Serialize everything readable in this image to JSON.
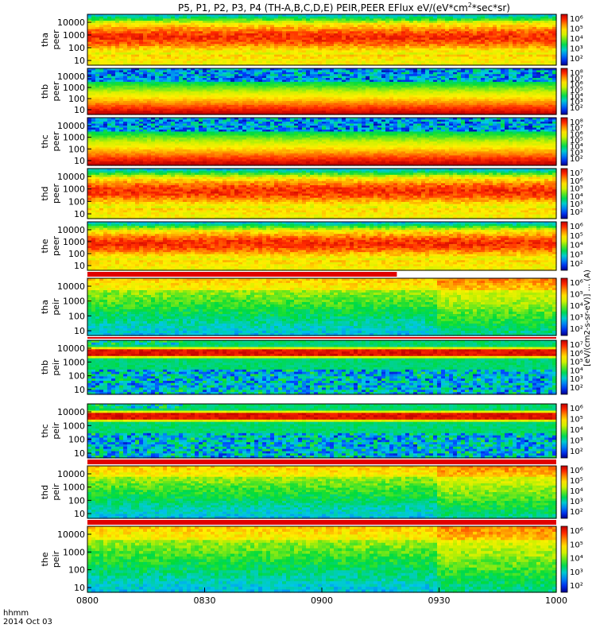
{
  "chart_data": {
    "type": "heatmap",
    "title": "P5, P1, P2, P3, P4 (TH-A,B,C,D,E) PEIR,PEER EFlux eV/(eV*cm",
    "title_sup": "2",
    "title_tail": "*sec*sr)",
    "colorbar_title": "[eV/(cm2-s-sr-eV)] ... (A)",
    "colors": {
      "red": "#e00000",
      "orange": "#ff8000",
      "yellow": "#ffff00",
      "green": "#00e000",
      "cyan": "#00e0e0",
      "blue": "#0050ff",
      "navy": "#000080",
      "black": "#000000"
    },
    "x": {
      "ticks": [
        "0800",
        "0830",
        "0900",
        "0930",
        "1000"
      ],
      "range_minutes": [
        0,
        120
      ],
      "label_line1": "hhmm",
      "label_line2": "2014 Oct 03"
    },
    "y_ticks": [
      "10000",
      "1000",
      "100",
      "10"
    ],
    "panels": [
      {
        "probe": "tha",
        "species": "peer",
        "profile": "electron_hot",
        "cb_ticks": [
          "10⁶",
          "10⁵",
          "10⁴",
          "10³",
          "10²"
        ]
      },
      {
        "probe": "thb",
        "species": "peer",
        "profile": "electron_cold",
        "cb_ticks": [
          "10⁸",
          "10⁷",
          "10⁶",
          "10⁵",
          "10⁴",
          "10³",
          "10²"
        ]
      },
      {
        "probe": "thc",
        "species": "peer",
        "profile": "electron_cold",
        "cb_ticks": [
          "10⁸",
          "10⁷",
          "10⁶",
          "10⁵",
          "10⁴",
          "10³",
          "10²"
        ]
      },
      {
        "probe": "thd",
        "species": "peer",
        "profile": "electron_hot",
        "cb_ticks": [
          "10⁷",
          "10⁶",
          "10⁵",
          "10⁴",
          "10³",
          "10²"
        ]
      },
      {
        "probe": "the",
        "species": "peer",
        "profile": "electron_hot",
        "cb_ticks": [
          "10⁶",
          "10⁵",
          "10⁴",
          "10³",
          "10²"
        ]
      },
      {
        "probe": "tha",
        "species": "peir",
        "profile": "ion_mixed",
        "cb_ticks": [
          "10⁶",
          "10⁵",
          "10⁴",
          "10³",
          "10²"
        ]
      },
      {
        "probe": "thb",
        "species": "peir",
        "profile": "ion_band",
        "cb_ticks": [
          "10⁷",
          "10⁶",
          "10⁵",
          "10⁴",
          "10³",
          "10²"
        ]
      },
      {
        "probe": "thc",
        "species": "peir",
        "profile": "ion_band",
        "cb_ticks": [
          "10⁶",
          "10⁵",
          "10⁴",
          "10³",
          "10²"
        ]
      },
      {
        "probe": "thd",
        "species": "peir",
        "profile": "ion_mixed",
        "cb_ticks": [
          "10⁶",
          "10⁵",
          "10⁴",
          "10³",
          "10²"
        ]
      },
      {
        "probe": "the",
        "species": "peir",
        "profile": "ion_mixed",
        "cb_ticks": [
          "10⁶",
          "10⁵",
          "10⁴",
          "10³",
          "10²"
        ]
      }
    ]
  }
}
